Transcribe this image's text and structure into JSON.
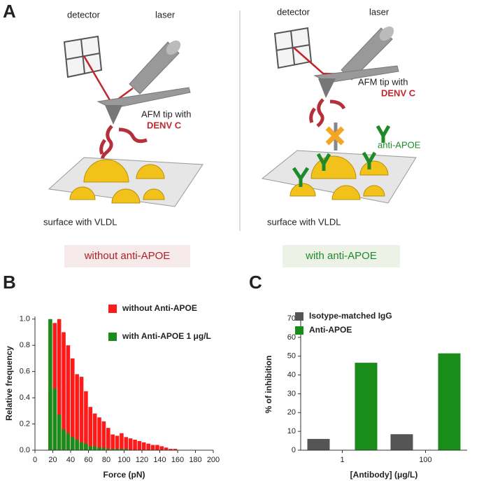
{
  "panels": [
    "A",
    "B",
    "C"
  ],
  "panel_a": {
    "left": {
      "detector": "detector",
      "laser": "laser",
      "tip": "AFM tip with",
      "protein": "DENV C",
      "surface": "surface with VLDL",
      "caption": "without anti-APOE"
    },
    "right": {
      "detector": "detector",
      "laser": "laser",
      "tip": "AFM tip with",
      "protein": "DENV C",
      "antibody": "anti-APOE",
      "surface": "surface with VLDL",
      "caption": "with anti-APOE"
    }
  },
  "chart_data": [
    {
      "type": "histogram",
      "xlabel": "Force (pN)",
      "ylabel": "Relative frequency",
      "bins": [
        15,
        20,
        25,
        30,
        35,
        40,
        45,
        50,
        55,
        60,
        65,
        70,
        75,
        80,
        85,
        90,
        95,
        100,
        105,
        110,
        115,
        120,
        125,
        130,
        135,
        140,
        145,
        150,
        155,
        160
      ],
      "series": [
        {
          "name": "without Anti-APOE",
          "color": "#ff1a1a",
          "values": [
            0.45,
            0.97,
            1.0,
            0.9,
            0.8,
            0.7,
            0.58,
            0.56,
            0.45,
            0.33,
            0.28,
            0.25,
            0.22,
            0.17,
            0.12,
            0.11,
            0.13,
            0.1,
            0.09,
            0.08,
            0.07,
            0.06,
            0.05,
            0.04,
            0.04,
            0.03,
            0.02,
            0.01,
            0.01
          ]
        },
        {
          "name": "with Anti-APOE 1 μg/L",
          "color": "#1a8c1a",
          "values": [
            1.0,
            0.47,
            0.27,
            0.16,
            0.13,
            0.1,
            0.08,
            0.06,
            0.05,
            0.03,
            0.03,
            0.02,
            0.02,
            0.01,
            0.01,
            0.01,
            0.01,
            0.01,
            0,
            0,
            0,
            0,
            0,
            0,
            0,
            0,
            0,
            0,
            0
          ]
        }
      ],
      "xlim": [
        0,
        200
      ],
      "xticks": [
        0,
        20,
        40,
        60,
        80,
        100,
        120,
        140,
        160,
        180,
        200
      ],
      "ylim": [
        0,
        1.02
      ],
      "yticks": [
        {
          "value": 0,
          "label": "0.0"
        },
        {
          "value": 0.2,
          "label": "0.2"
        },
        {
          "value": 0.4,
          "label": "0.4"
        },
        {
          "value": 0.6,
          "label": "0.6"
        },
        {
          "value": 0.8,
          "label": "0.8"
        },
        {
          "value": 1.0,
          "label": "1.0"
        }
      ]
    },
    {
      "type": "bar",
      "xlabel": "[Antibody] (μg/L)",
      "ylabel": "% of inhibition",
      "categories": [
        "1",
        "100"
      ],
      "series": [
        {
          "name": "Isotype-matched IgG",
          "color": "#555555",
          "values": [
            6,
            8.5
          ]
        },
        {
          "name": "Anti-APOE",
          "color": "#1a8c1a",
          "values": [
            46.5,
            51.5
          ]
        }
      ],
      "ylim": [
        0,
        70
      ],
      "yticks": [
        0,
        10,
        20,
        30,
        40,
        50,
        60,
        70
      ]
    }
  ]
}
